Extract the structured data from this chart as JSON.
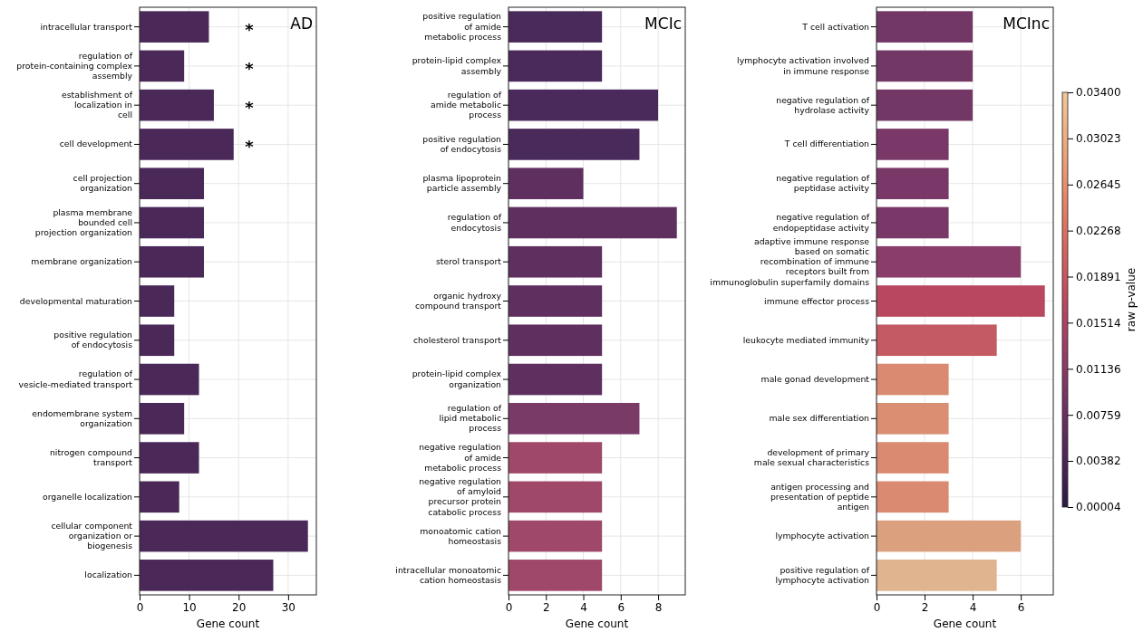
{
  "chart_data": [
    {
      "type": "bar",
      "orientation": "horizontal",
      "title": "AD",
      "xlabel": "Gene count",
      "grid": true,
      "categories": [
        "intracellular transport",
        "regulation of\nprotein-containing complex\nassembly",
        "establishment of\nlocalization in\ncell",
        "cell development",
        "cell projection\norganization",
        "plasma membrane\nbounded cell\nprojection organization",
        "membrane organization",
        "developmental maturation",
        "positive regulation\nof endocytosis",
        "regulation of\nvesicle-mediated transport",
        "endomembrane system\norganization",
        "nitrogen compound\ntransport",
        "organelle localization",
        "cellular component\norganization or\nbiogenesis",
        "localization"
      ],
      "values": [
        14,
        9,
        15,
        19,
        13,
        13,
        13,
        7,
        7,
        12,
        9,
        12,
        8,
        34,
        27
      ],
      "colors": [
        "#4a2858",
        "#4a2858",
        "#4a2858",
        "#4a2858",
        "#4a2858",
        "#4a2858",
        "#4a2858",
        "#4a2858",
        "#4a2858",
        "#4a2858",
        "#4a2858",
        "#4a2858",
        "#4a2858",
        "#4a2858",
        "#4a2858"
      ],
      "xlim": [
        0,
        35.7
      ],
      "xticks": [
        0,
        10,
        20,
        30
      ],
      "annotations": [
        "*",
        "*",
        "*",
        "*"
      ]
    },
    {
      "type": "bar",
      "orientation": "horizontal",
      "title": "MCIc",
      "xlabel": "Gene count",
      "grid": true,
      "categories": [
        "positive regulation\nof amide\nmetabolic process",
        "protein-lipid complex\nassembly",
        "regulation of\namide metabolic\nprocess",
        "positive regulation\nof endocytosis",
        "plasma lipoprotein\nparticle assembly",
        "regulation of\nendocytosis",
        "sterol transport",
        "organic hydroxy\ncompound transport",
        "cholesterol transport",
        "protein-lipid complex\norganization",
        "regulation of\nlipid metabolic\nprocess",
        "negative regulation\nof amide\nmetabolic process",
        "negative regulation\nof amyloid\nprecursor protein\ncatabolic process",
        "monoatomic cation\nhomeostasis",
        "intracellular monoatomic\ncation homeostasis"
      ],
      "values": [
        5,
        5,
        8,
        7,
        4,
        9,
        5,
        5,
        5,
        5,
        7,
        5,
        5,
        5,
        5
      ],
      "colors": [
        "#4a2a5a",
        "#4a2a5a",
        "#4a2a5a",
        "#4a2a5a",
        "#5f2f60",
        "#5f2f60",
        "#5f2f60",
        "#5f2f60",
        "#5f2f60",
        "#5f2f60",
        "#7a3a68",
        "#a0486a",
        "#a0486a",
        "#a0486a",
        "#a0486a"
      ],
      "xlim": [
        0,
        9.45
      ],
      "xticks": [
        0,
        2,
        4,
        6,
        8
      ]
    },
    {
      "type": "bar",
      "orientation": "horizontal",
      "title": "MCInc",
      "xlabel": "Gene count",
      "grid": true,
      "categories": [
        "T cell activation",
        "lymphocyte activation involved\nin immune response",
        "negative regulation of\nhydrolase activity",
        "T cell differentiation",
        "negative regulation of\npeptidase activity",
        "negative regulation of\nendopeptidase activity",
        "adaptive immune response\nbased on somatic\nrecombination of immune\nreceptors built from\nimmunoglobulin superfamily domains",
        "immune effector process",
        "leukocyte mediated immunity",
        "male gonad development",
        "male sex differentiation",
        "development of primary\nmale sexual characteristics",
        "antigen processing and\npresentation of peptide\nantigen",
        "lymphocyte activation",
        "positive regulation of\nlymphocyte activation"
      ],
      "values": [
        4,
        4,
        4,
        3,
        3,
        3,
        6,
        7,
        5,
        3,
        3,
        3,
        3,
        6,
        5
      ],
      "colors": [
        "#733766",
        "#733766",
        "#733766",
        "#7a3868",
        "#7a3868",
        "#7a3868",
        "#8a3c6a",
        "#b8475f",
        "#c45a62",
        "#d98a70",
        "#da8e72",
        "#d98a70",
        "#d98a70",
        "#dba07e",
        "#e0b48e"
      ],
      "xlim": [
        0,
        7.35
      ],
      "xticks": [
        0,
        2,
        4,
        6
      ],
      "clabel": "raw p-value",
      "clim": [
        4e-05,
        0.034
      ],
      "cticks": [
        {
          "value": 4e-05,
          "label": "0.00004"
        },
        {
          "value": 0.00382,
          "label": "0.00382"
        },
        {
          "value": 0.00759,
          "label": "0.00759"
        },
        {
          "value": 0.01136,
          "label": "0.01136"
        },
        {
          "value": 0.01514,
          "label": "0.01514"
        },
        {
          "value": 0.01891,
          "label": "0.01891"
        },
        {
          "value": 0.02268,
          "label": "0.02268"
        },
        {
          "value": 0.02645,
          "label": "0.02645"
        },
        {
          "value": 0.03023,
          "label": "0.03023"
        },
        {
          "value": 0.034,
          "label": "0.03400"
        }
      ]
    }
  ]
}
